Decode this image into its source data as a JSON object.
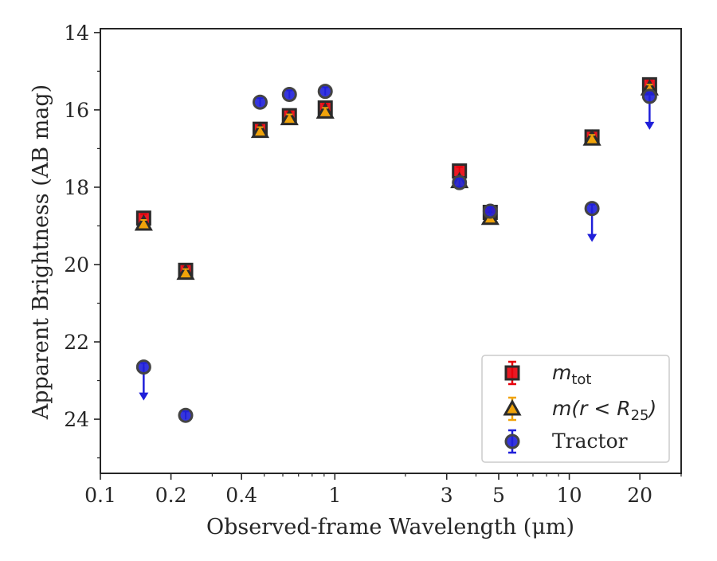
{
  "chart_data": {
    "type": "scatter",
    "title": "",
    "xlabel": "Observed-frame Wavelength (μm)",
    "ylabel": "Apparent Brightness (AB mag)",
    "x_scale": "log",
    "y_inverted": true,
    "xlim": [
      0.1,
      30
    ],
    "ylim": [
      25.4,
      13.9
    ],
    "x_ticks": [
      {
        "value": 0.1,
        "label": "0.1"
      },
      {
        "value": 0.2,
        "label": "0.2"
      },
      {
        "value": 0.4,
        "label": "0.4"
      },
      {
        "value": 1,
        "label": "1"
      },
      {
        "value": 3,
        "label": "3"
      },
      {
        "value": 5,
        "label": "5"
      },
      {
        "value": 10,
        "label": "10"
      },
      {
        "value": 20,
        "label": "20"
      }
    ],
    "y_ticks": [
      {
        "value": 14,
        "label": "14"
      },
      {
        "value": 16,
        "label": "16"
      },
      {
        "value": 18,
        "label": "18"
      },
      {
        "value": 20,
        "label": "20"
      },
      {
        "value": 22,
        "label": "22"
      },
      {
        "value": 24,
        "label": "24"
      }
    ],
    "grid": false,
    "legend_position": "bottom-right",
    "series": [
      {
        "name": "m_tot",
        "marker": "square",
        "color": "#e8000b",
        "points": [
          {
            "x": 0.153,
            "y": 18.8
          },
          {
            "x": 0.231,
            "y": 20.15
          },
          {
            "x": 0.48,
            "y": 16.5
          },
          {
            "x": 0.64,
            "y": 16.15
          },
          {
            "x": 0.91,
            "y": 15.95
          },
          {
            "x": 3.4,
            "y": 17.58
          },
          {
            "x": 4.6,
            "y": 18.65
          },
          {
            "x": 12.5,
            "y": 16.7
          },
          {
            "x": 22.0,
            "y": 15.35
          }
        ]
      },
      {
        "name": "m(r < R25)",
        "marker": "triangle",
        "color": "#f0a30a",
        "points": [
          {
            "x": 0.153,
            "y": 18.95
          },
          {
            "x": 0.231,
            "y": 20.22
          },
          {
            "x": 0.48,
            "y": 16.55
          },
          {
            "x": 0.64,
            "y": 16.22
          },
          {
            "x": 0.91,
            "y": 16.05
          },
          {
            "x": 3.4,
            "y": 17.85
          },
          {
            "x": 4.6,
            "y": 18.8
          },
          {
            "x": 12.5,
            "y": 16.75
          },
          {
            "x": 22.0,
            "y": 15.45
          }
        ]
      },
      {
        "name": "Tractor",
        "marker": "circle",
        "color": "#1f1fd9",
        "points": [
          {
            "x": 0.153,
            "y": 22.65,
            "upper_limit": true
          },
          {
            "x": 0.231,
            "y": 23.9
          },
          {
            "x": 0.48,
            "y": 15.8
          },
          {
            "x": 0.64,
            "y": 15.6
          },
          {
            "x": 0.91,
            "y": 15.52
          },
          {
            "x": 3.4,
            "y": 17.88
          },
          {
            "x": 4.6,
            "y": 18.62
          },
          {
            "x": 12.5,
            "y": 18.55,
            "upper_limit": true
          },
          {
            "x": 22.0,
            "y": 15.65,
            "upper_limit": true
          }
        ]
      }
    ]
  },
  "legend": {
    "items": [
      {
        "series": "m_tot",
        "main": "m",
        "sub": "tot",
        "tail": ""
      },
      {
        "series": "m(r < R25)",
        "main": "m(r < R",
        "sub": "25",
        "tail": ")"
      },
      {
        "series": "Tractor",
        "main": "Tractor",
        "sub": "",
        "tail": ""
      }
    ]
  }
}
